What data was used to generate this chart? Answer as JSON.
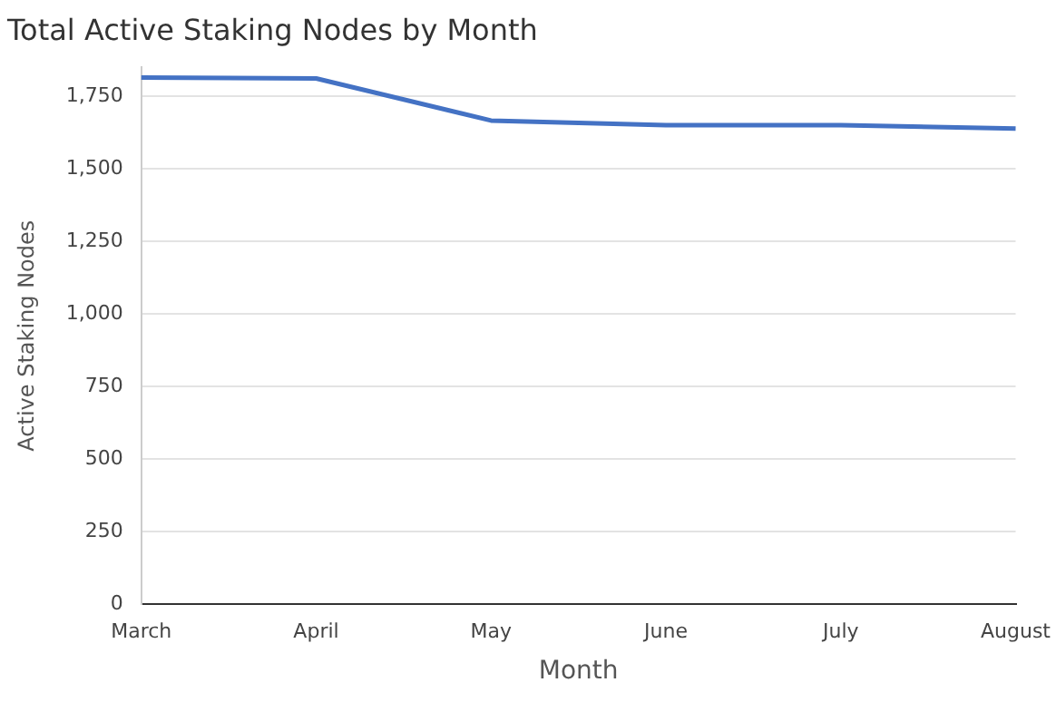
{
  "chart_data": {
    "type": "line",
    "title": "Total Active Staking Nodes by Month",
    "xlabel": "Month",
    "ylabel": "Active Staking Nodes",
    "categories": [
      "March",
      "April",
      "May",
      "June",
      "July",
      "August"
    ],
    "series": [
      {
        "color": "#4472c4",
        "values": [
          1815,
          1812,
          1667,
          1651,
          1651,
          1639
        ]
      }
    ],
    "ylim": [
      0,
      1850
    ],
    "yticks": [
      0,
      250,
      500,
      750,
      {
        "value": 1000,
        "label": "1,000"
      },
      {
        "value": 1250,
        "label": "1,250"
      },
      {
        "value": 1500,
        "label": "1,500"
      },
      {
        "value": 1750,
        "label": "1,750"
      }
    ],
    "grid": "y",
    "legend": false,
    "marker": "none",
    "line_style": "solid"
  }
}
